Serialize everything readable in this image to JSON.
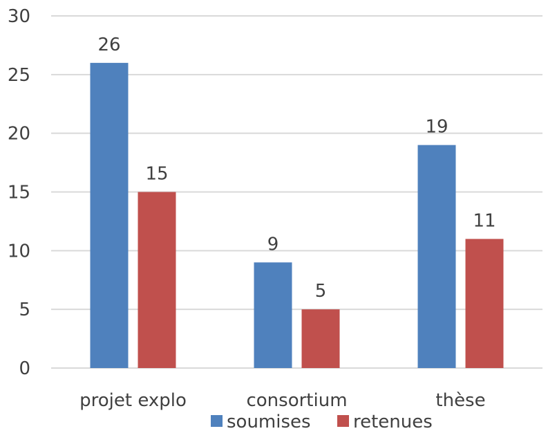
{
  "chart_data": {
    "type": "bar",
    "categories": [
      "projet explo",
      "consortium",
      "thèse"
    ],
    "series": [
      {
        "name": "soumises",
        "values": [
          26,
          9,
          19
        ],
        "color": "#4f81bd"
      },
      {
        "name": "retenues",
        "values": [
          15,
          5,
          11
        ],
        "color": "#c0504d"
      }
    ],
    "title": "",
    "xlabel": "",
    "ylabel": "",
    "ylim": [
      0,
      30
    ],
    "yticks": [
      0,
      5,
      10,
      15,
      20,
      25,
      30
    ],
    "grid": true,
    "legend_position": "bottom",
    "data_labels": true,
    "gridline_color": "#d9d9d9"
  }
}
